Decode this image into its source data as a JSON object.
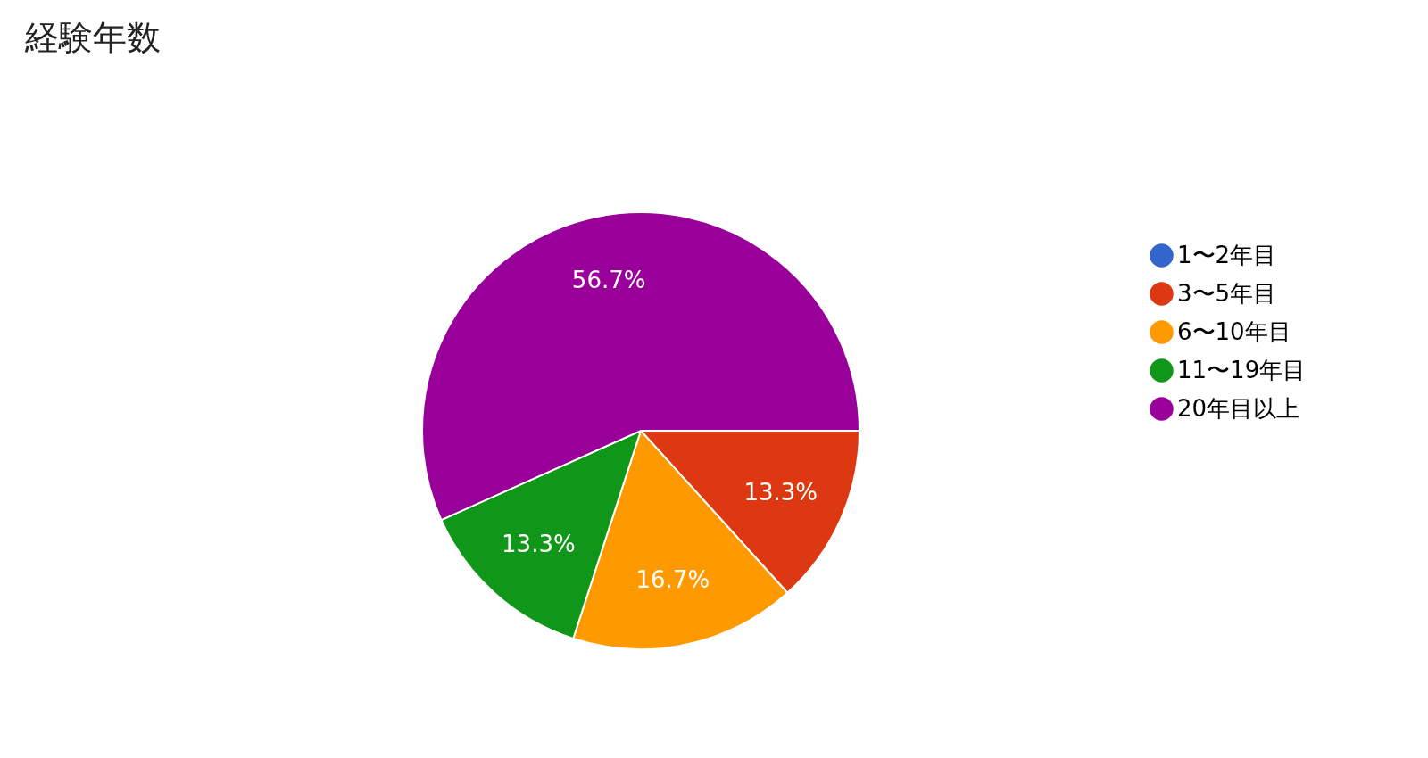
{
  "chart_data": {
    "type": "pie",
    "title": "経験年数",
    "categories": [
      "1〜2年目",
      "3〜5年目",
      "6〜10年目",
      "11〜19年目",
      "20年目以上"
    ],
    "values": [
      0,
      13.3,
      16.7,
      13.3,
      56.7
    ],
    "colors": [
      "#3366cc",
      "#dc3912",
      "#ff9900",
      "#109618",
      "#990099"
    ],
    "value_labels": [
      null,
      "13.3%",
      "16.7%",
      "13.3%",
      "56.7%"
    ],
    "legend": "right"
  }
}
